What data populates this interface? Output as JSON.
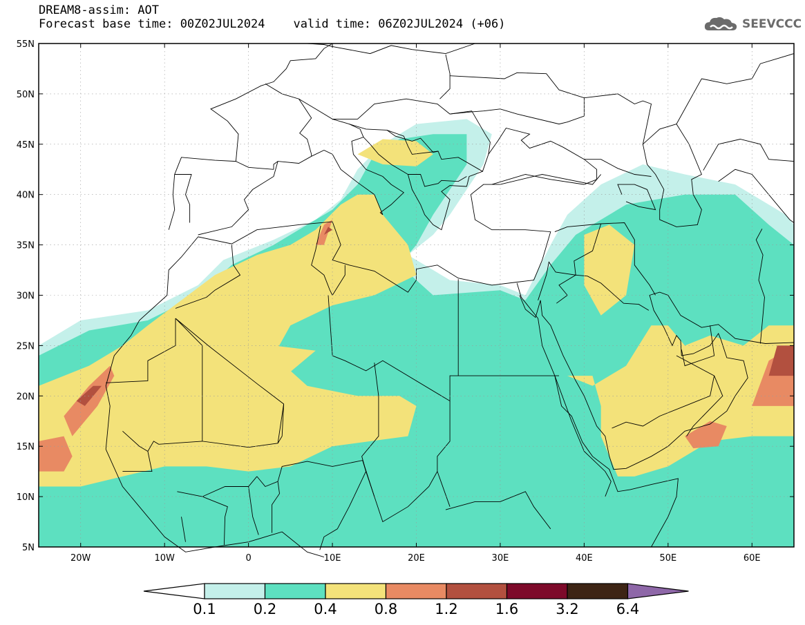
{
  "header": {
    "title": "DREAM8-assim: AOT",
    "subtitle": "Forecast base time: 00Z02JUL2024    valid time: 06Z02JUL2024 (+06)",
    "logo_text": "SEEVCCC"
  },
  "map": {
    "projection": "lat-lon",
    "lon_range": [
      -25,
      65
    ],
    "lat_range": [
      5,
      55
    ],
    "y_tick_labels": [
      "55N",
      "50N",
      "45N",
      "40N",
      "35N",
      "30N",
      "25N",
      "20N",
      "15N",
      "10N",
      "5N"
    ],
    "x_tick_labels": [
      "20W",
      "10W",
      "0",
      "10E",
      "20E",
      "30E",
      "40E",
      "50E",
      "60E"
    ],
    "grid": "dotted",
    "variable": "AOT"
  },
  "colorbar": {
    "levels": [
      "0.1",
      "0.2",
      "0.4",
      "0.8",
      "1.2",
      "1.6",
      "3.2",
      "6.4"
    ],
    "colors": [
      "#c4f0ea",
      "#5de0c0",
      "#f3e27a",
      "#e88a63",
      "#b2503f",
      "#7d0a2a",
      "#3d2414",
      "#8e67a8"
    ],
    "extend": "both"
  }
}
